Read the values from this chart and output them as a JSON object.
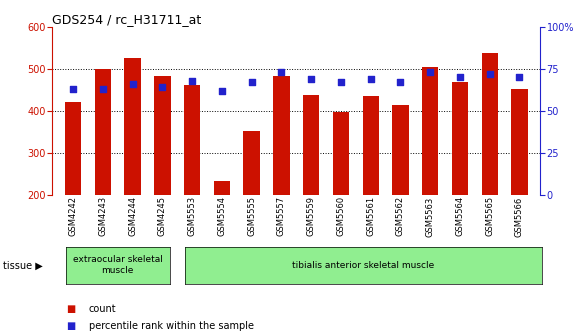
{
  "title": "GDS254 / rc_H31711_at",
  "samples": [
    "GSM4242",
    "GSM4243",
    "GSM4244",
    "GSM4245",
    "GSM5553",
    "GSM5554",
    "GSM5555",
    "GSM5557",
    "GSM5559",
    "GSM5560",
    "GSM5561",
    "GSM5562",
    "GSM5563",
    "GSM5564",
    "GSM5565",
    "GSM5566"
  ],
  "counts": [
    422,
    500,
    527,
    482,
    462,
    232,
    351,
    483,
    438,
    397,
    435,
    414,
    505,
    468,
    537,
    451
  ],
  "percentiles": [
    63,
    63,
    66,
    64,
    68,
    62,
    67,
    73,
    69,
    67,
    69,
    67,
    73,
    70,
    72,
    70
  ],
  "tissue_groups": [
    {
      "label": "extraocular skeletal\nmuscle",
      "start": 0,
      "end": 3,
      "color": "#90EE90"
    },
    {
      "label": "tibialis anterior skeletal muscle",
      "start": 4,
      "end": 15,
      "color": "#90EE90"
    }
  ],
  "bar_color": "#cc1100",
  "percentile_color": "#2222cc",
  "ylim_left": [
    200,
    600
  ],
  "ylim_right": [
    0,
    100
  ],
  "yticks_left": [
    200,
    300,
    400,
    500,
    600
  ],
  "yticks_right": [
    0,
    25,
    50,
    75,
    100
  ],
  "left_tick_color": "#cc1100",
  "right_tick_color": "#2222cc",
  "background_color": "#ffffff",
  "plot_bg_color": "#ffffff",
  "grid_color": "#000000",
  "legend_count_label": "count",
  "legend_percentile_label": "percentile rank within the sample",
  "tissue_label": "tissue",
  "bar_bottom": 200,
  "bar_width": 0.55
}
